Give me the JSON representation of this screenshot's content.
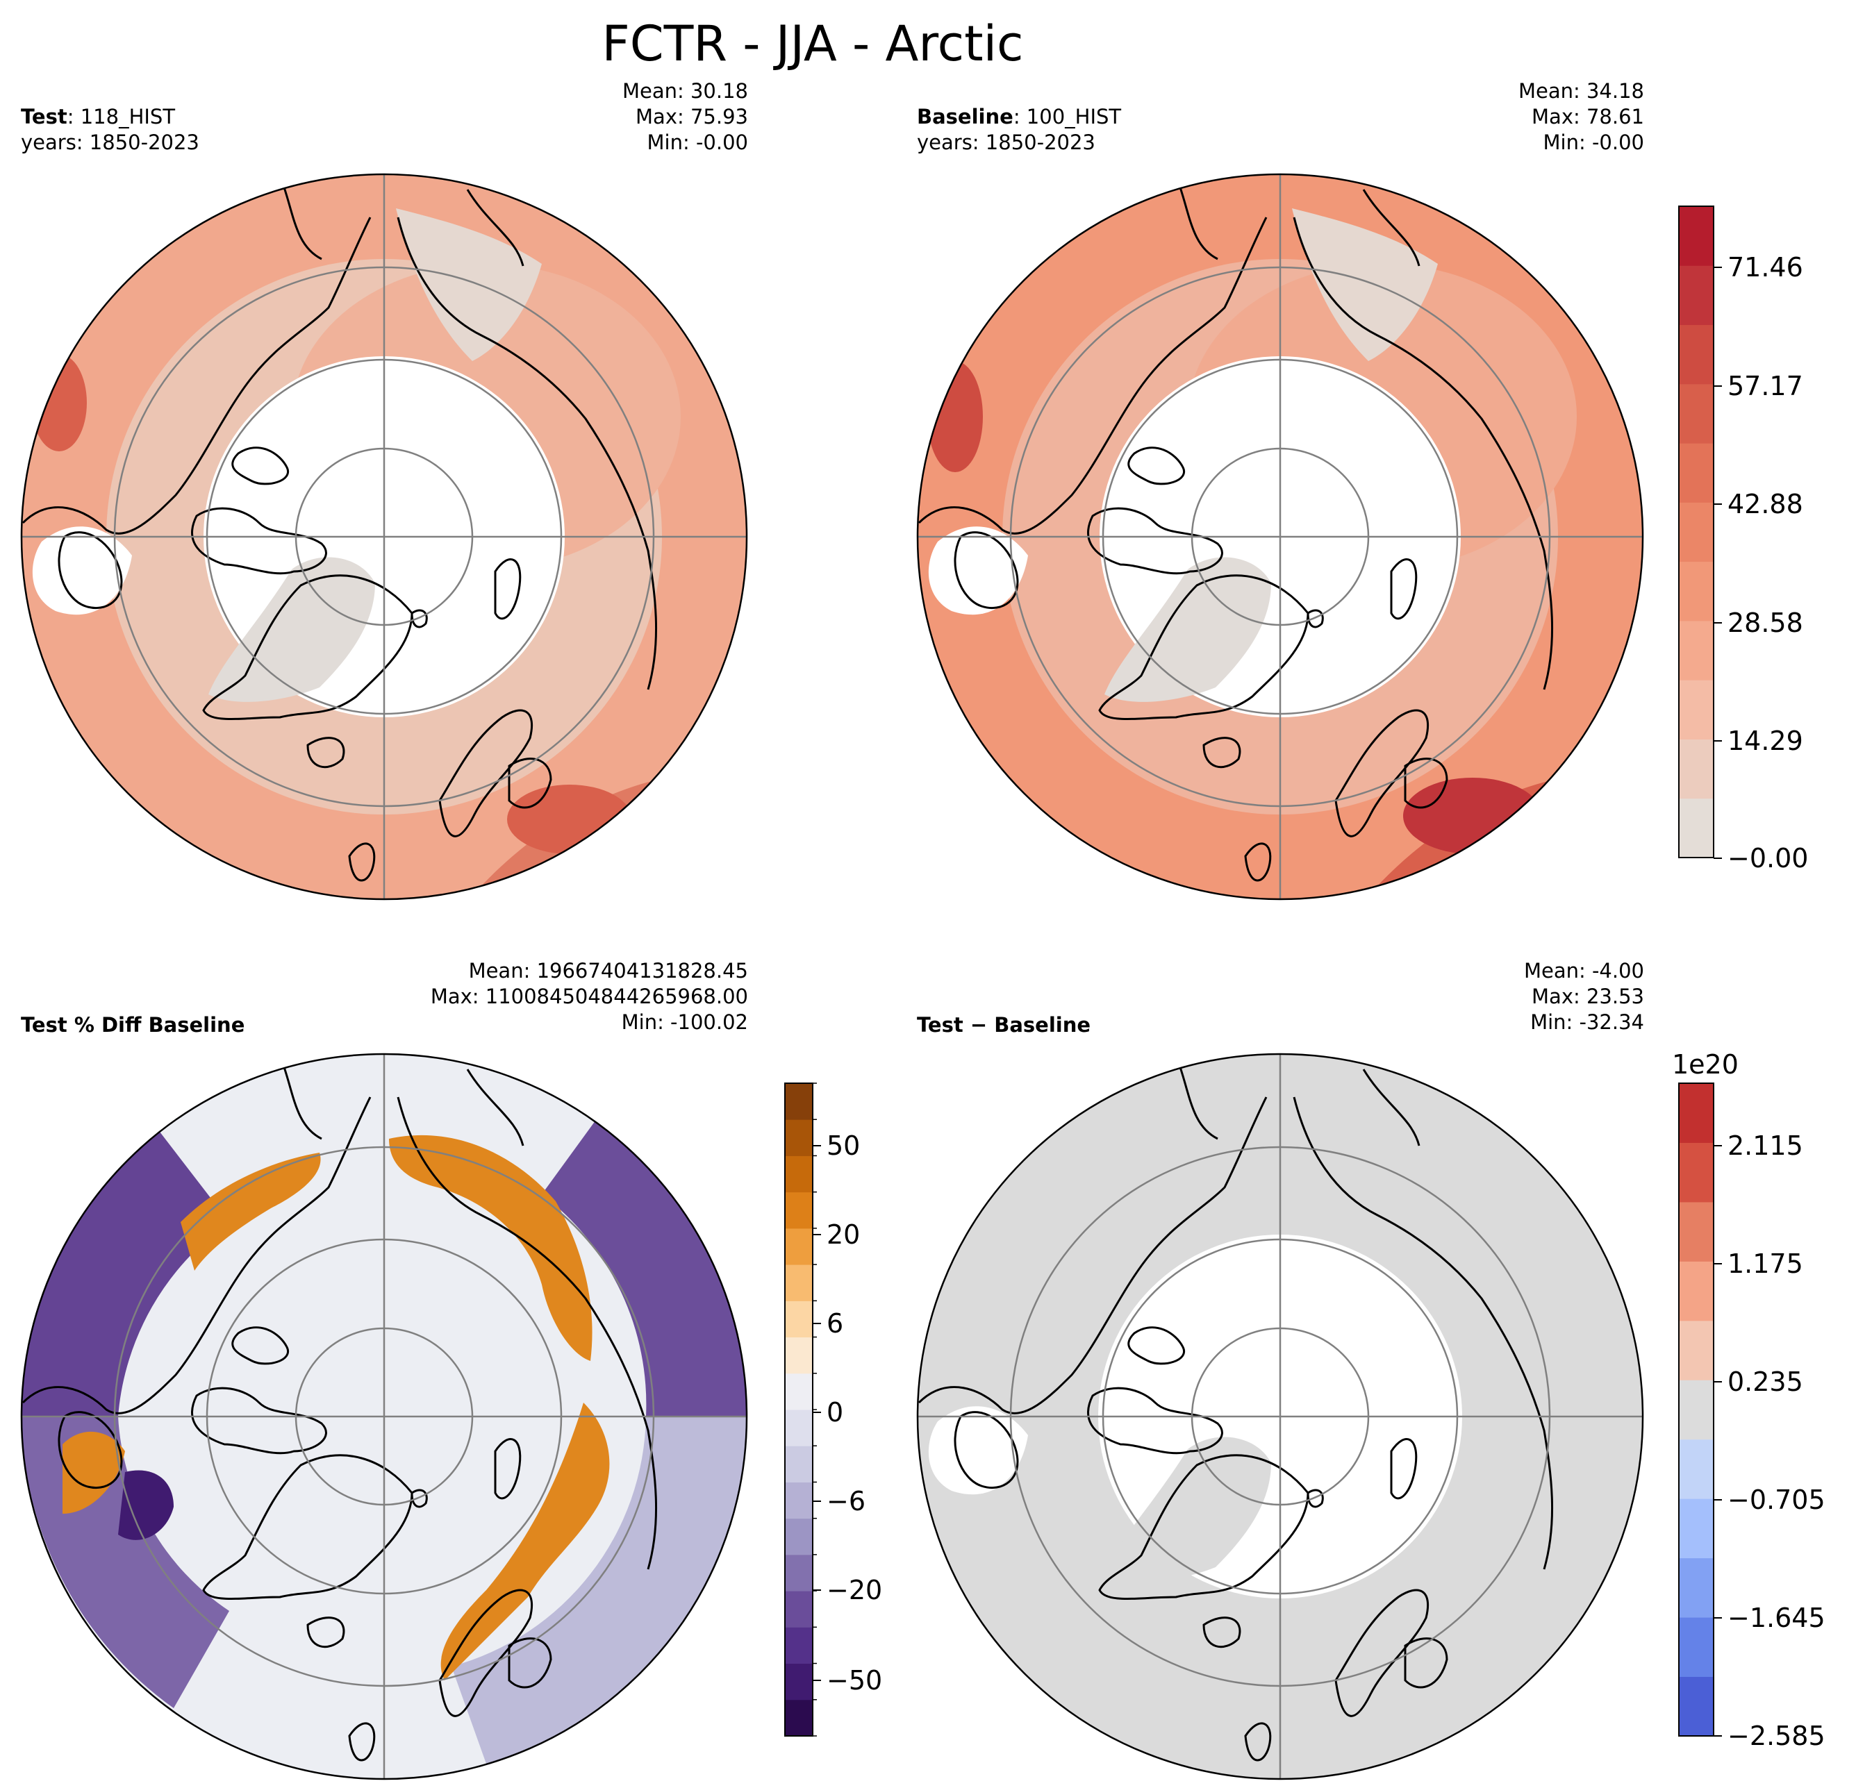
{
  "title": "FCTR - JJA - Arctic",
  "panels": [
    {
      "id": "test",
      "name_bold": "Test",
      "name_rest": ": 118_HIST",
      "years": "years: 1850-2023",
      "mean": "Mean: 30.18",
      "max": "Max: 75.93",
      "min": "Min: -0.00"
    },
    {
      "id": "baseline",
      "name_bold": "Baseline",
      "name_rest": ": 100_HIST",
      "years": "years: 1850-2023",
      "mean": "Mean: 34.18",
      "max": "Max: 78.61",
      "min": "Min: -0.00"
    },
    {
      "id": "pctdiff",
      "name_bold": "Test % Diff Baseline",
      "name_rest": "",
      "mean": "Mean: 19667404131828.45",
      "max": "Max: 110084504844265968.00",
      "min": "Min: -100.02"
    },
    {
      "id": "diff",
      "name_bold": "Test",
      "name_rest": " − Baseline",
      "mean": "Mean: -4.00",
      "max": "Max: 23.53",
      "min": "Min: -32.34"
    }
  ],
  "chart_data": [
    {
      "type": "heatmap",
      "panel": "Test",
      "title": "Test : 118_HIST",
      "projection": "North Polar Stereographic",
      "region": "Arctic",
      "variable": "FCTR",
      "season": "JJA",
      "years": "1850-2023",
      "mean": 30.18,
      "max": 75.93,
      "min": -0.0
    },
    {
      "type": "heatmap",
      "panel": "Baseline",
      "title": "Baseline : 100_HIST",
      "projection": "North Polar Stereographic",
      "region": "Arctic",
      "variable": "FCTR",
      "season": "JJA",
      "years": "1850-2023",
      "mean": 34.18,
      "max": 78.61,
      "min": -0.0
    },
    {
      "type": "heatmap",
      "panel": "Test % Diff Baseline",
      "mean": 19667404131828.45,
      "max": 1.1008450484426597e+17,
      "min": -100.02
    },
    {
      "type": "heatmap",
      "panel": "Test - Baseline",
      "mean": -4.0,
      "max": 23.53,
      "min": -32.34
    }
  ],
  "colorbars": [
    {
      "id": "cb-main",
      "labels": [
        "71.46",
        "57.17",
        "42.88",
        "28.58",
        "14.29",
        "−0.00"
      ],
      "values": [
        71.46,
        57.17,
        42.88,
        28.58,
        14.29,
        0.0
      ],
      "range": [
        0.0,
        78.61
      ],
      "colors": [
        "#e4ddd7",
        "#ecccbe",
        "#f4bca6",
        "#f4aa8e",
        "#f19878",
        "#eb8667",
        "#e37358",
        "#d85f4b",
        "#ce4c41",
        "#c0353a",
        "#b51d2d"
      ]
    },
    {
      "id": "cb-pct",
      "labels": [
        "50",
        "20",
        "6",
        "0",
        "−6",
        "−20",
        "−50"
      ],
      "values": [
        50,
        20,
        6,
        0,
        -6,
        -20,
        -50
      ],
      "colors": [
        "#2b0b4f",
        "#401b70",
        "#54318a",
        "#6a4d9a",
        "#8271ae",
        "#9c95c4",
        "#b5b1d4",
        "#cbcbe2",
        "#dedfed",
        "#eeeef3",
        "#fbe8d0",
        "#fcd6a4",
        "#f8bb70",
        "#ee9e3e",
        "#dd8018",
        "#c66a0b",
        "#a85508",
        "#86400a"
      ]
    },
    {
      "id": "cb-diff",
      "offset": "1e20",
      "labels": [
        "2.115",
        "1.175",
        "0.235",
        "−0.705",
        "−1.645",
        "−2.585"
      ],
      "values": [
        2.115,
        1.175,
        0.235,
        -0.705,
        -1.645,
        -2.585
      ],
      "colors": [
        "#4b5fd6",
        "#6482e8",
        "#82a1f3",
        "#a4bffc",
        "#c2d4f8",
        "#dcdcdc",
        "#f3c6b2",
        "#f4a487",
        "#e67f63",
        "#d55141",
        "#c2302f"
      ]
    }
  ],
  "map_colors": {
    "pos_light": "#ecc5b3",
    "pos_mid": "#f1a88d",
    "pos_dark": "#d9604c",
    "land_grey": "#e1dcd8",
    "pct_bg": "#eceef3",
    "pct_orange": "#e0871e",
    "pct_purple": "#553189",
    "pct_lav": "#bdbbd9",
    "diff_grey": "#dbdbdb",
    "grid": "#808080"
  }
}
